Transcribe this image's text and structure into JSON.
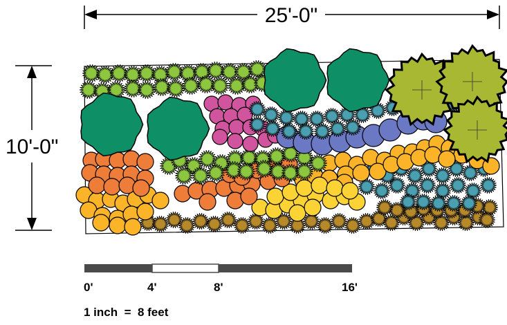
{
  "dimensions": {
    "width_label": "25'-0\"",
    "height_label": "10'-0\""
  },
  "scale_bar": {
    "ticks": [
      {
        "label": "0'",
        "feet": 0
      },
      {
        "label": "4'",
        "feet": 4
      },
      {
        "label": "8'",
        "feet": 8
      },
      {
        "label": "16'",
        "feet": 16
      }
    ],
    "ratio_text": "1 inch  =  8 feet"
  },
  "colors": {
    "green_shrub": "#0e8f66",
    "lime_tree": "#a8b832",
    "lime_spiky": "#8dc63f",
    "magenta": "#d1559e",
    "teal_spiky": "#4a9fb0",
    "periwinkle": "#6b79c4",
    "orange": "#ee7d3a",
    "yellow": "#fcd335",
    "gold": "#fbb428",
    "brown_spiky": "#b68a2a"
  }
}
